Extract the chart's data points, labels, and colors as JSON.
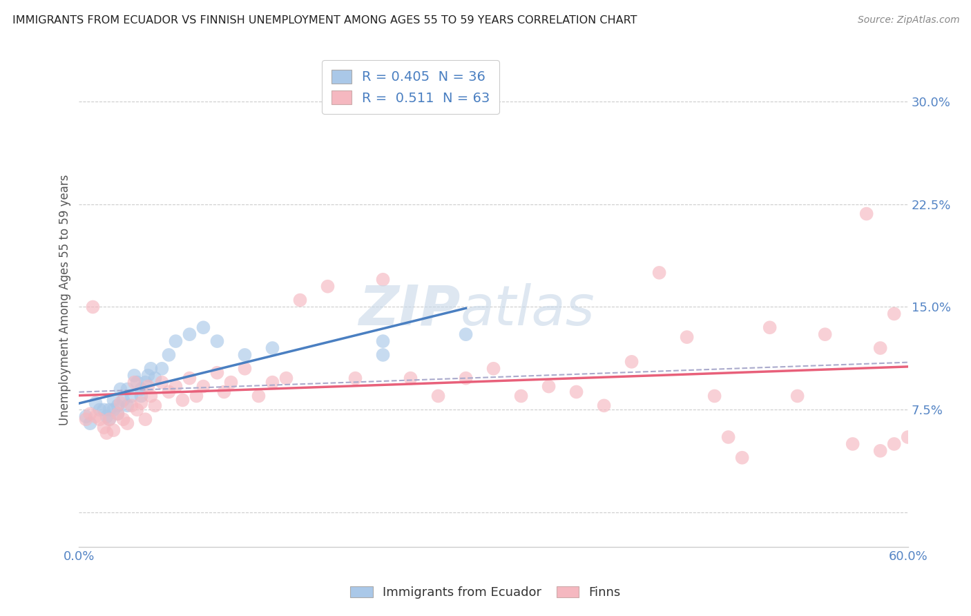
{
  "title": "IMMIGRANTS FROM ECUADOR VS FINNISH UNEMPLOYMENT AMONG AGES 55 TO 59 YEARS CORRELATION CHART",
  "source": "Source: ZipAtlas.com",
  "ylabel": "Unemployment Among Ages 55 to 59 years",
  "xlim": [
    0.0,
    0.6
  ],
  "ylim": [
    -0.025,
    0.335
  ],
  "xticks": [
    0.0,
    0.06,
    0.12,
    0.18,
    0.24,
    0.3,
    0.36,
    0.42,
    0.48,
    0.54,
    0.6
  ],
  "yticks": [
    0.0,
    0.075,
    0.15,
    0.225,
    0.3
  ],
  "ytick_labels": [
    "",
    "7.5%",
    "15.0%",
    "22.5%",
    "30.0%"
  ],
  "xtick_labels": [
    "0.0%",
    "",
    "",
    "",
    "",
    "",
    "",
    "",
    "",
    "",
    "60.0%"
  ],
  "legend_blue_label": "Immigrants from Ecuador",
  "legend_pink_label": "Finns",
  "legend_blue_text": "R = 0.405  N = 36",
  "legend_pink_text": "R =  0.511  N = 63",
  "blue_color": "#aac8e8",
  "pink_color": "#f5b8c0",
  "blue_line_color": "#4a7fc1",
  "pink_line_color": "#e8607a",
  "dashed_line_color": "#aaaacc",
  "background_color": "#ffffff",
  "grid_color": "#cccccc",
  "blue_scatter_x": [
    0.005,
    0.008,
    0.012,
    0.015,
    0.018,
    0.02,
    0.022,
    0.022,
    0.025,
    0.025,
    0.028,
    0.028,
    0.03,
    0.032,
    0.035,
    0.035,
    0.038,
    0.04,
    0.042,
    0.045,
    0.045,
    0.048,
    0.05,
    0.052,
    0.055,
    0.06,
    0.065,
    0.07,
    0.08,
    0.09,
    0.1,
    0.12,
    0.14,
    0.22,
    0.22,
    0.28
  ],
  "blue_scatter_y": [
    0.07,
    0.065,
    0.08,
    0.075,
    0.075,
    0.07,
    0.075,
    0.068,
    0.082,
    0.075,
    0.078,
    0.072,
    0.09,
    0.082,
    0.078,
    0.09,
    0.085,
    0.1,
    0.095,
    0.09,
    0.085,
    0.095,
    0.1,
    0.105,
    0.098,
    0.105,
    0.115,
    0.125,
    0.13,
    0.135,
    0.125,
    0.115,
    0.12,
    0.115,
    0.125,
    0.13
  ],
  "pink_scatter_x": [
    0.005,
    0.008,
    0.01,
    0.012,
    0.015,
    0.018,
    0.02,
    0.022,
    0.025,
    0.028,
    0.03,
    0.032,
    0.035,
    0.038,
    0.04,
    0.042,
    0.045,
    0.048,
    0.05,
    0.052,
    0.055,
    0.06,
    0.065,
    0.07,
    0.075,
    0.08,
    0.085,
    0.09,
    0.1,
    0.105,
    0.11,
    0.12,
    0.13,
    0.14,
    0.15,
    0.16,
    0.18,
    0.2,
    0.22,
    0.24,
    0.26,
    0.28,
    0.3,
    0.32,
    0.34,
    0.36,
    0.38,
    0.4,
    0.42,
    0.44,
    0.46,
    0.47,
    0.48,
    0.5,
    0.52,
    0.54,
    0.56,
    0.57,
    0.58,
    0.58,
    0.59,
    0.59,
    0.6
  ],
  "pink_scatter_y": [
    0.068,
    0.072,
    0.15,
    0.07,
    0.068,
    0.062,
    0.058,
    0.068,
    0.06,
    0.072,
    0.08,
    0.068,
    0.065,
    0.078,
    0.095,
    0.075,
    0.08,
    0.068,
    0.092,
    0.085,
    0.078,
    0.095,
    0.088,
    0.092,
    0.082,
    0.098,
    0.085,
    0.092,
    0.102,
    0.088,
    0.095,
    0.105,
    0.085,
    0.095,
    0.098,
    0.155,
    0.165,
    0.098,
    0.17,
    0.098,
    0.085,
    0.098,
    0.105,
    0.085,
    0.092,
    0.088,
    0.078,
    0.11,
    0.175,
    0.128,
    0.085,
    0.055,
    0.04,
    0.135,
    0.085,
    0.13,
    0.05,
    0.218,
    0.045,
    0.12,
    0.145,
    0.05,
    0.055
  ]
}
